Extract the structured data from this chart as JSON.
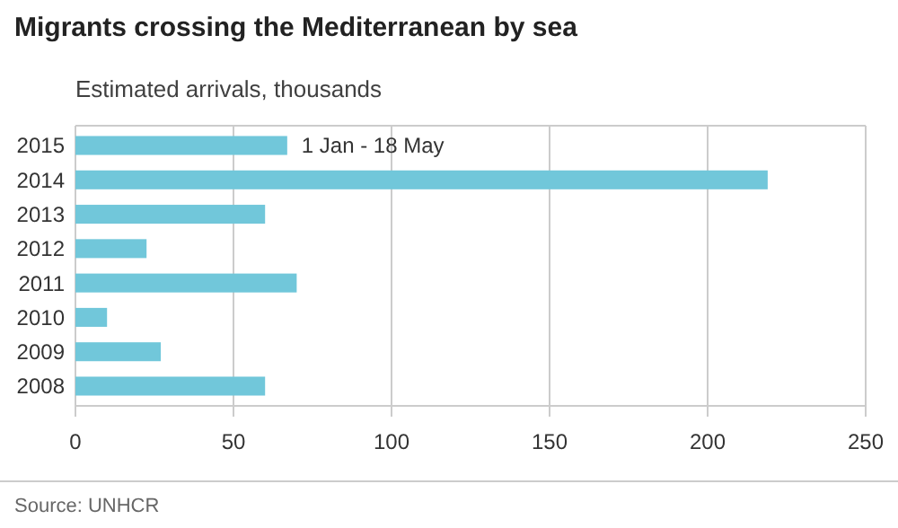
{
  "chart_data": {
    "type": "bar",
    "orientation": "horizontal",
    "title": "Migrants crossing the Mediterranean by sea",
    "subtitle": "Estimated arrivals, thousands",
    "categories": [
      "2015",
      "2014",
      "2013",
      "2012",
      "2011",
      "2010",
      "2009",
      "2008"
    ],
    "values": [
      67,
      219,
      60,
      22.5,
      70,
      10,
      27,
      60
    ],
    "color": "#71c7da",
    "xlim": [
      0,
      250
    ],
    "xticks": [
      0,
      50,
      100,
      150,
      200,
      250
    ],
    "grid": "x",
    "annotations": [
      {
        "text": "1 Jan - 18 May",
        "x": 67,
        "y": "2015"
      },
      "Source: UNHCR"
    ]
  }
}
